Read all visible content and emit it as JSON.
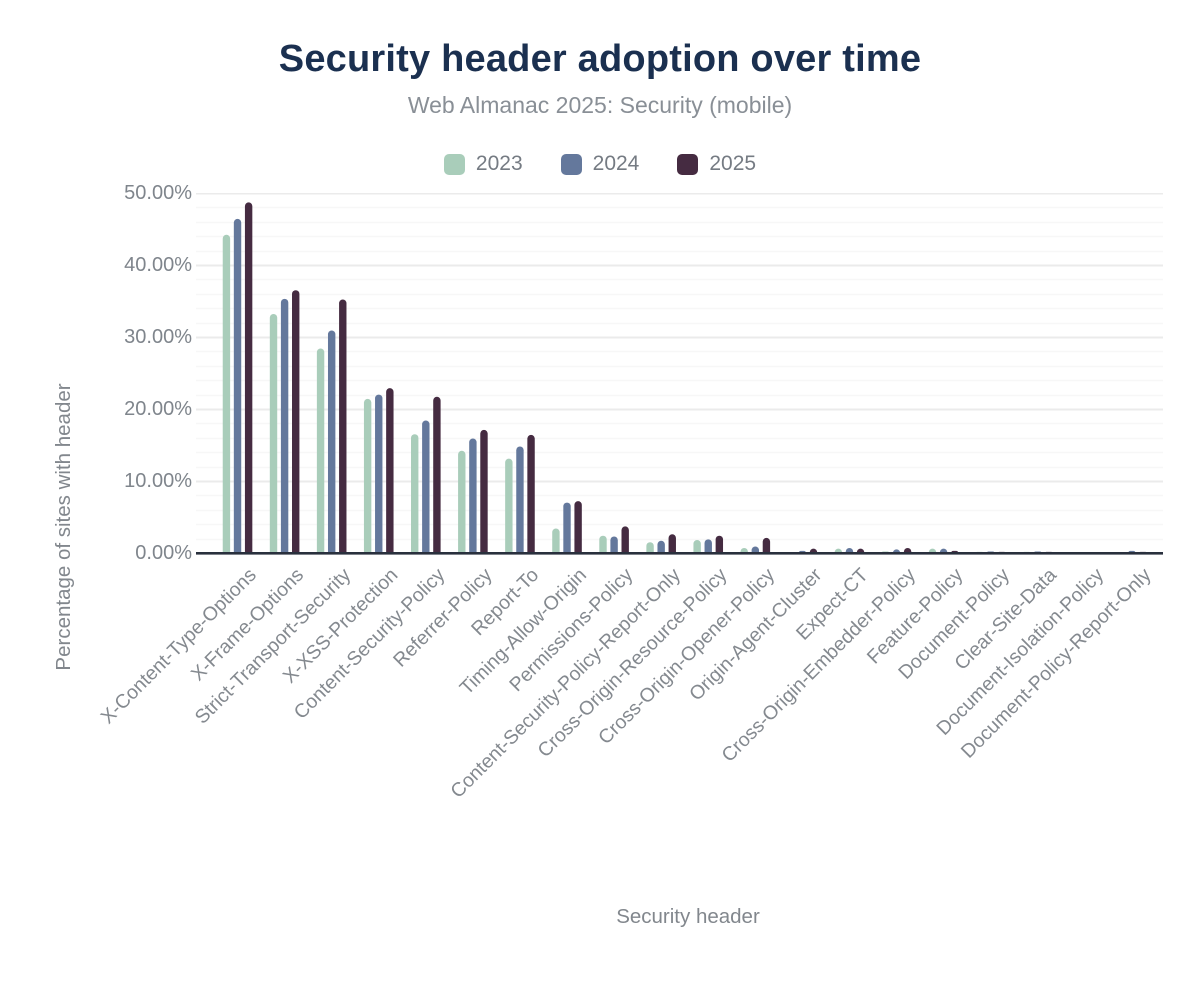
{
  "chart_data": {
    "type": "bar",
    "title": "Security header adoption over time",
    "subtitle": "Web Almanac 2025: Security (mobile)",
    "xlabel": "Security header",
    "ylabel": "Percentage of sites with header",
    "ylim": [
      0,
      50
    ],
    "y_tick_step": 10,
    "y_minor_tick_step": 2,
    "y_tick_labels": [
      "0.00%",
      "10.00%",
      "20.00%",
      "30.00%",
      "40.00%",
      "50.00%"
    ],
    "grid": "on",
    "legend_position": "top-center",
    "bar_style": "rounded-top",
    "categories": [
      "X-Content-Type-Options",
      "X-Frame-Options",
      "Strict-Transport-Security",
      "X-XSS-Protection",
      "Content-Security-Policy",
      "Referrer-Policy",
      "Report-To",
      "Timing-Allow-Origin",
      "Permissions-Policy",
      "Content-Security-Policy-Report-Only",
      "Cross-Origin-Resource-Policy",
      "Cross-Origin-Opener-Policy",
      "Origin-Agent-Cluster",
      "Expect-CT",
      "Cross-Origin-Embedder-Policy",
      "Feature-Policy",
      "Document-Policy",
      "Clear-Site-Data",
      "Document-Isolation-Policy",
      "Document-Policy-Report-Only"
    ],
    "series": [
      {
        "name": "2023",
        "color": "#a9cdba",
        "values": [
          44.2,
          33.2,
          28.4,
          21.4,
          16.5,
          14.2,
          13.1,
          3.4,
          2.4,
          1.5,
          1.8,
          0.7,
          0.1,
          0.6,
          0.2,
          0.6,
          0.15,
          0.15,
          0.02,
          0.1
        ]
      },
      {
        "name": "2024",
        "color": "#64789c",
        "values": [
          46.4,
          35.3,
          30.9,
          22.0,
          18.4,
          15.9,
          14.8,
          7.0,
          2.3,
          1.7,
          1.9,
          0.9,
          0.3,
          0.7,
          0.5,
          0.6,
          0.2,
          0.2,
          0.03,
          0.3
        ]
      },
      {
        "name": "2025",
        "color": "#452b41",
        "values": [
          48.7,
          36.5,
          35.2,
          22.9,
          21.7,
          17.1,
          16.4,
          7.2,
          3.7,
          2.6,
          2.4,
          2.1,
          0.6,
          0.6,
          0.7,
          0.3,
          0.15,
          0.15,
          0.1,
          0.15
        ]
      }
    ],
    "style": {
      "title_color": "#1b3050",
      "subtitle_color": "#898f96",
      "axis_text_color": "#84898f",
      "axis_line_color": "#29303d",
      "grid_major_color": "#ebebeb",
      "grid_minor_color": "#f7f7f7",
      "background_color": "#ffffff"
    }
  }
}
